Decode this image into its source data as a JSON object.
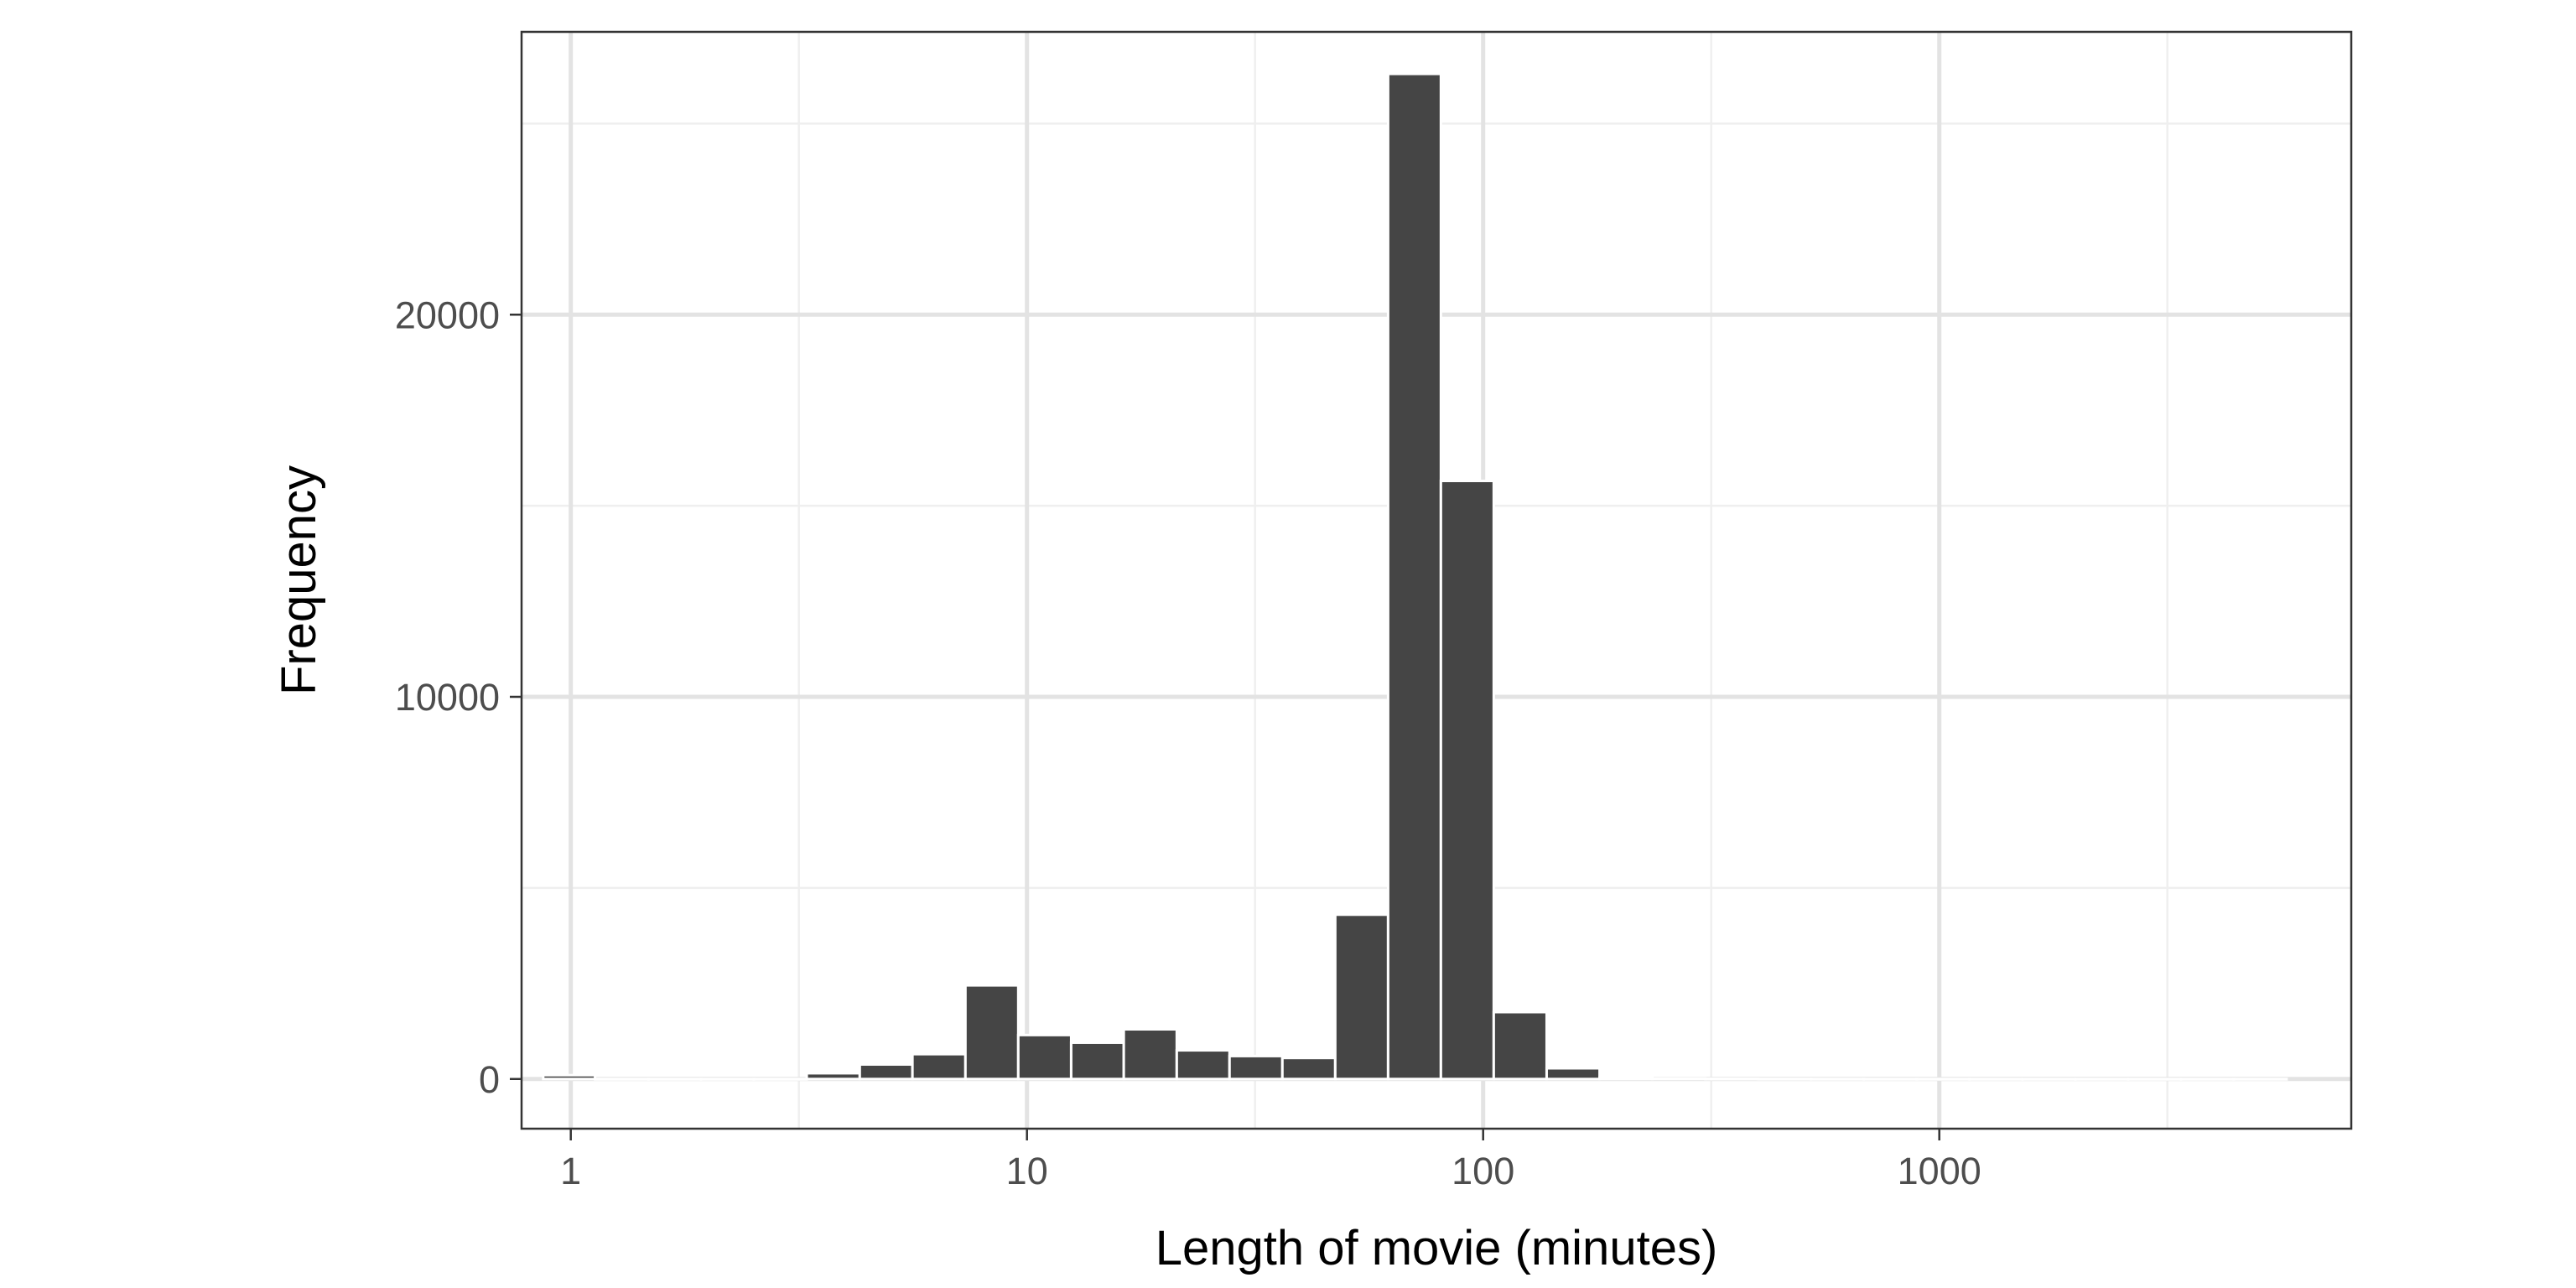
{
  "chart_data": {
    "type": "bar",
    "title": "",
    "xlabel": "Length of movie (minutes)",
    "ylabel": "Frequency",
    "x_scale": "log10",
    "xlim": [
      0.78,
      8000
    ],
    "ylim": [
      -1300,
      27400
    ],
    "x_ticks": [
      {
        "value": 1,
        "label": "1"
      },
      {
        "value": 10,
        "label": "10"
      },
      {
        "value": 100,
        "label": "100"
      },
      {
        "value": 1000,
        "label": "1000"
      }
    ],
    "y_ticks": [
      {
        "value": 0,
        "label": "0"
      },
      {
        "value": 10000,
        "label": "10000"
      },
      {
        "value": 20000,
        "label": "20000"
      }
    ],
    "grid": true,
    "bins": [
      {
        "x0": 0.87,
        "x1": 1.13,
        "count": 100
      },
      {
        "x0": 1.13,
        "x1": 1.48,
        "count": 0
      },
      {
        "x0": 1.48,
        "x1": 1.93,
        "count": 0
      },
      {
        "x0": 1.93,
        "x1": 2.52,
        "count": 0
      },
      {
        "x0": 2.52,
        "x1": 3.29,
        "count": 0
      },
      {
        "x0": 3.29,
        "x1": 4.3,
        "count": 150
      },
      {
        "x0": 4.3,
        "x1": 5.61,
        "count": 380
      },
      {
        "x0": 5.61,
        "x1": 7.33,
        "count": 650
      },
      {
        "x0": 7.33,
        "x1": 9.57,
        "count": 2450
      },
      {
        "x0": 9.57,
        "x1": 12.5,
        "count": 1150
      },
      {
        "x0": 12.5,
        "x1": 16.3,
        "count": 950
      },
      {
        "x0": 16.3,
        "x1": 21.3,
        "count": 1300
      },
      {
        "x0": 21.3,
        "x1": 27.8,
        "count": 750
      },
      {
        "x0": 27.8,
        "x1": 36.3,
        "count": 600
      },
      {
        "x0": 36.3,
        "x1": 47.4,
        "count": 550
      },
      {
        "x0": 47.4,
        "x1": 61.9,
        "count": 4300
      },
      {
        "x0": 61.9,
        "x1": 80.8,
        "count": 26300
      },
      {
        "x0": 80.8,
        "x1": 105.5,
        "count": 15650
      },
      {
        "x0": 105.5,
        "x1": 137.8,
        "count": 1750
      },
      {
        "x0": 137.8,
        "x1": 180,
        "count": 280
      },
      {
        "x0": 180,
        "x1": 235,
        "count": 40
      },
      {
        "x0": 235,
        "x1": 307,
        "count": 12
      },
      {
        "x0": 307,
        "x1": 401,
        "count": 6
      },
      {
        "x0": 401,
        "x1": 523,
        "count": 3
      },
      {
        "x0": 523,
        "x1": 683,
        "count": 2
      },
      {
        "x0": 683,
        "x1": 892,
        "count": 1
      },
      {
        "x0": 892,
        "x1": 1165,
        "count": 1
      },
      {
        "x0": 1165,
        "x1": 1521,
        "count": 0
      },
      {
        "x0": 1521,
        "x1": 1986,
        "count": 0
      },
      {
        "x0": 1986,
        "x1": 2593,
        "count": 0
      },
      {
        "x0": 2593,
        "x1": 3385,
        "count": 0
      },
      {
        "x0": 3385,
        "x1": 4420,
        "count": 0
      },
      {
        "x0": 4420,
        "x1": 5771,
        "count": 1
      }
    ],
    "colors": {
      "bar_fill": "#454545",
      "bar_stroke": "#ffffff",
      "grid_major": "#e3e3e3",
      "grid_minor": "#efefef",
      "panel_border": "#333333"
    }
  }
}
